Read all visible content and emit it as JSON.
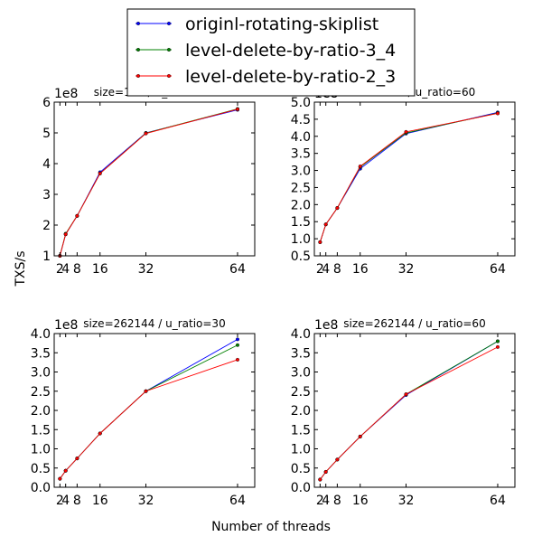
{
  "figure": {
    "ylabel": "TXS/s",
    "xlabel": "Number of threads",
    "legend": [
      {
        "name": "originl-rotating-skiplist",
        "color": "#0000ff"
      },
      {
        "name": "level-delete-by-ratio-3_4",
        "color": "#008000"
      },
      {
        "name": "level-delete-by-ratio-2_3",
        "color": "#ff0000"
      }
    ]
  },
  "chart_data": [
    {
      "type": "line",
      "title": "size=128 / u_ratio=30",
      "scale_label": "1e8",
      "x": [
        2,
        4,
        8,
        16,
        32,
        64
      ],
      "xticks": [
        2,
        4,
        8,
        16,
        32,
        64
      ],
      "xlim": [
        0,
        70
      ],
      "ylim": [
        1,
        6
      ],
      "yticks": [
        "1",
        "2",
        "3",
        "4",
        "5",
        "6"
      ],
      "ytick_values": [
        1,
        2,
        3,
        4,
        5,
        6
      ],
      "series": [
        {
          "name": "originl-rotating-skiplist",
          "color": "#0000ff",
          "values": [
            1.0,
            1.7,
            2.3,
            3.72,
            5.0,
            5.75
          ]
        },
        {
          "name": "level-delete-by-ratio-3_4",
          "color": "#008000",
          "values": [
            1.0,
            1.72,
            2.3,
            3.68,
            4.99,
            5.78
          ]
        },
        {
          "name": "level-delete-by-ratio-2_3",
          "color": "#ff0000",
          "values": [
            1.0,
            1.7,
            2.3,
            3.68,
            4.98,
            5.77
          ]
        }
      ]
    },
    {
      "type": "line",
      "title": "size=128 / u_ratio=60",
      "scale_label": "1e8",
      "x": [
        2,
        4,
        8,
        16,
        32,
        64
      ],
      "xticks": [
        2,
        4,
        8,
        16,
        32,
        64
      ],
      "xlim": [
        0,
        70
      ],
      "ylim": [
        0.5,
        5.0
      ],
      "yticks": [
        "0.5",
        "1.0",
        "1.5",
        "2.0",
        "2.5",
        "3.0",
        "3.5",
        "4.0",
        "4.5",
        "5.0"
      ],
      "ytick_values": [
        0.5,
        1.0,
        1.5,
        2.0,
        2.5,
        3.0,
        3.5,
        4.0,
        4.5,
        5.0
      ],
      "series": [
        {
          "name": "originl-rotating-skiplist",
          "color": "#0000ff",
          "values": [
            0.9,
            1.42,
            1.9,
            3.05,
            4.08,
            4.7
          ]
        },
        {
          "name": "level-delete-by-ratio-3_4",
          "color": "#008000",
          "values": [
            0.9,
            1.42,
            1.9,
            3.1,
            4.1,
            4.68
          ]
        },
        {
          "name": "level-delete-by-ratio-2_3",
          "color": "#ff0000",
          "values": [
            0.9,
            1.42,
            1.9,
            3.12,
            4.13,
            4.67
          ]
        }
      ]
    },
    {
      "type": "line",
      "title": "size=262144 / u_ratio=30",
      "scale_label": "1e8",
      "x": [
        2,
        4,
        8,
        16,
        32,
        64
      ],
      "xticks": [
        2,
        4,
        8,
        16,
        32,
        64
      ],
      "xlim": [
        0,
        70
      ],
      "ylim": [
        0.0,
        4.0
      ],
      "yticks": [
        "0.0",
        "0.5",
        "1.0",
        "1.5",
        "2.0",
        "2.5",
        "3.0",
        "3.5",
        "4.0"
      ],
      "ytick_values": [
        0.0,
        0.5,
        1.0,
        1.5,
        2.0,
        2.5,
        3.0,
        3.5,
        4.0
      ],
      "series": [
        {
          "name": "originl-rotating-skiplist",
          "color": "#0000ff",
          "values": [
            0.22,
            0.43,
            0.75,
            1.4,
            2.5,
            3.85
          ]
        },
        {
          "name": "level-delete-by-ratio-3_4",
          "color": "#008000",
          "values": [
            0.22,
            0.43,
            0.75,
            1.4,
            2.5,
            3.7
          ]
        },
        {
          "name": "level-delete-by-ratio-2_3",
          "color": "#ff0000",
          "values": [
            0.22,
            0.43,
            0.75,
            1.4,
            2.5,
            3.32
          ]
        }
      ]
    },
    {
      "type": "line",
      "title": "size=262144 / u_ratio=60",
      "scale_label": "1e8",
      "x": [
        2,
        4,
        8,
        16,
        32,
        64
      ],
      "xticks": [
        2,
        4,
        8,
        16,
        32,
        64
      ],
      "xlim": [
        0,
        70
      ],
      "ylim": [
        0.0,
        4.0
      ],
      "yticks": [
        "0.0",
        "0.5",
        "1.0",
        "1.5",
        "2.0",
        "2.5",
        "3.0",
        "3.5",
        "4.0"
      ],
      "ytick_values": [
        0.0,
        0.5,
        1.0,
        1.5,
        2.0,
        2.5,
        3.0,
        3.5,
        4.0
      ],
      "series": [
        {
          "name": "originl-rotating-skiplist",
          "color": "#0000ff",
          "values": [
            0.2,
            0.4,
            0.72,
            1.32,
            2.4,
            3.8
          ]
        },
        {
          "name": "level-delete-by-ratio-3_4",
          "color": "#008000",
          "values": [
            0.2,
            0.4,
            0.72,
            1.32,
            2.42,
            3.8
          ]
        },
        {
          "name": "level-delete-by-ratio-2_3",
          "color": "#ff0000",
          "values": [
            0.2,
            0.4,
            0.72,
            1.32,
            2.42,
            3.65
          ]
        }
      ]
    }
  ]
}
